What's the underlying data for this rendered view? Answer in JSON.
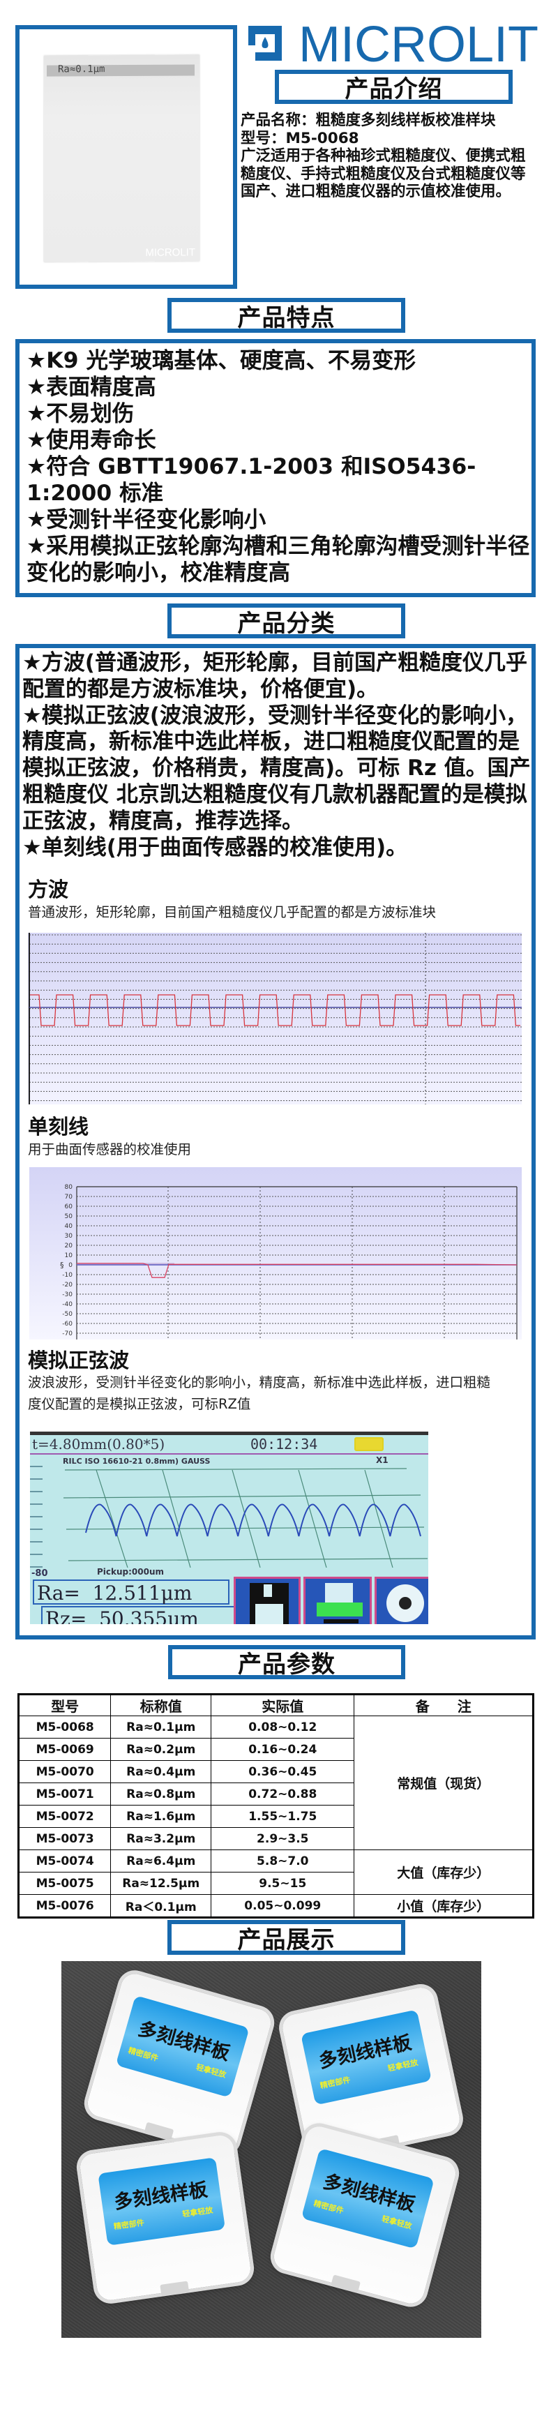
{
  "brand": {
    "name": "MICROLIT",
    "color": "#1769ae"
  },
  "sample_photo": {
    "label": "Ra≈0.1μm",
    "brand_mark": "MICROLIT"
  },
  "sections": {
    "intro": "产品介绍",
    "features": "产品特点",
    "categories": "产品分类",
    "params": "产品参数",
    "showcase": "产品展示"
  },
  "intro": {
    "name": "产品名称：粗糙度多刻线样板校准样块",
    "model": "型号：M5-0068",
    "description": "广泛适用于各种袖珍式粗糙度仪、便携式粗糙度仪、手持式粗糙度仪及台式粗糙度仪等国产、进口粗糙度仪器的示值校准使用。"
  },
  "features": [
    "★K9 光学玻璃基体、硬度高、不易变形",
    "★表面精度高",
    "★不易划伤",
    "★使用寿命长",
    "★符合 GBTT19067.1-2003 和ISO5436-1:2000 标准",
    "★受测针半径变化影响小",
    "★采用模拟正弦轮廓沟槽和三角轮廓沟槽受测针半径变化的影响小，校准精度高"
  ],
  "categories": [
    "★方波(普通波形，矩形轮廓，目前国产粗糙度仪几乎配置的都是方波标准块，价格便宜)。",
    "★模拟正弦波(波浪波形，受测针半径变化的影响小，精度高，新标准中选此样板，进口粗糙度仪配置的是模拟正弦波，价格稍贵，精度高)。可标 Rz 值。国产粗糙度仪 北京凯达粗糙度仪有几款机器配置的是模拟正弦波，精度高，推荐选择。",
    "★单刻线(用于曲面传感器的校准使用)。"
  ],
  "square_wave": {
    "heading": "方波",
    "text": "普通波形，矩形轮廓，目前国产粗糙度仪几乎配置的都是方波标准块"
  },
  "single_line": {
    "heading": "单刻线",
    "text": "用于曲面传感器的校准使用",
    "y_axis_label": "§",
    "y_ticks": [
      "80",
      "70",
      "60",
      "50",
      "40",
      "30",
      "20",
      "10",
      "0",
      "-10",
      "-20",
      "-30",
      "-40",
      "-50",
      "-60",
      "-70"
    ]
  },
  "sine_wave": {
    "heading": "模拟正弦波",
    "text": "波浪波形，受测针半径变化的影响小，精度高，新标准中选此样板，进口粗糙度仪配置的是模拟正弦波，可标RZ值",
    "screen": {
      "length": "t=4.80mm(0.80*5)",
      "time": "00:12:34",
      "filter": "RILC ISO 16610-21 0.8mm) GAUSS",
      "zoom": "X1",
      "axis_min": "-80",
      "pickup": "Pickup:000um",
      "ra": "Ra=  12.511μm",
      "rz": "Rz=  50.355μm"
    }
  },
  "params_table": {
    "headers": [
      "型号",
      "标称值",
      "实际值",
      "备　　注"
    ],
    "rows": [
      {
        "model": "M5-0068",
        "nominal": "Ra≈0.1μm",
        "actual": "0.08~0.12"
      },
      {
        "model": "M5-0069",
        "nominal": "Ra≈0.2μm",
        "actual": "0.16~0.24"
      },
      {
        "model": "M5-0070",
        "nominal": "Ra≈0.4μm",
        "actual": "0.36~0.45"
      },
      {
        "model": "M5-0071",
        "nominal": "Ra≈0.8μm",
        "actual": "0.72~0.88"
      },
      {
        "model": "M5-0072",
        "nominal": "Ra≈1.6μm",
        "actual": "1.55~1.75"
      },
      {
        "model": "M5-0073",
        "nominal": "Ra≈3.2μm",
        "actual": "2.9~3.5"
      },
      {
        "model": "M5-0074",
        "nominal": "Ra≈6.4μm",
        "actual": "5.8~7.0"
      },
      {
        "model": "M5-0075",
        "nominal": "Ra≈12.5μm",
        "actual": "9.5~15"
      },
      {
        "model": "M5-0076",
        "nominal": "Ra＜0.1μm",
        "actual": "0.05~0.099"
      }
    ],
    "remarks": [
      {
        "text": "常规值（现货）",
        "rows": 6
      },
      {
        "text": "大值（库存少）",
        "rows": 2
      },
      {
        "text": "小值（库存少）",
        "rows": 1
      }
    ]
  },
  "showcase": {
    "box_title": "多刻线样板",
    "tag_1": "精密部件",
    "tag_2": "轻拿轻放"
  }
}
